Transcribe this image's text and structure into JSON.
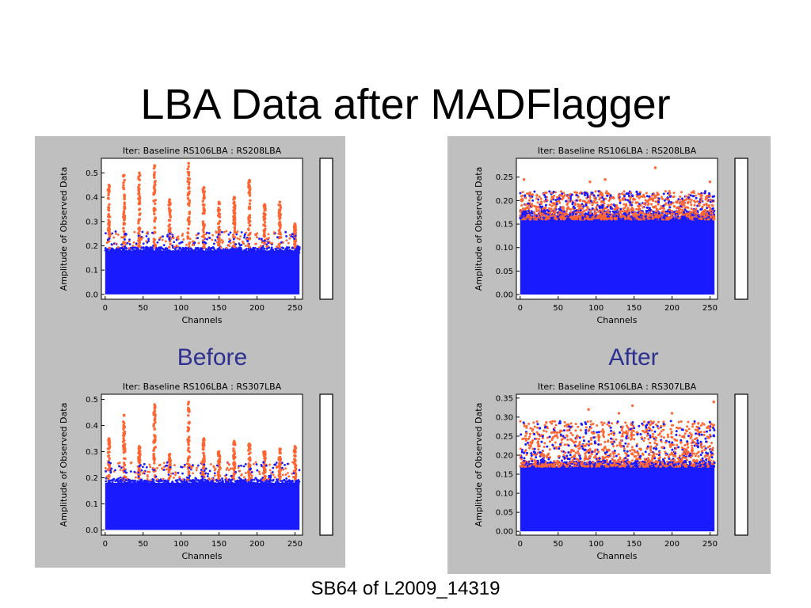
{
  "slide": {
    "title": "LBA Data after MADFlagger",
    "caption_left": "Before",
    "caption_right": "After",
    "footer": "SB64 of L2009_14319"
  },
  "colors": {
    "unflagged": "#1a1aff",
    "flagged": "#ff6633",
    "panel_bg": "#bfbfbf"
  },
  "chart_data": [
    {
      "type": "scatter",
      "title": "Iter: Baseline RS106LBA : RS208LBA",
      "xlabel": "Channels",
      "ylabel": "Amplitude of Observed Data",
      "xlim": [
        -5,
        260
      ],
      "ylim": [
        -0.02,
        0.56
      ],
      "xticks": [
        0,
        50,
        100,
        150,
        200,
        250
      ],
      "yticks": [
        0.0,
        0.1,
        0.2,
        0.3,
        0.4,
        0.5
      ],
      "ytick_labels": [
        "0.0",
        "0.1",
        "0.2",
        "0.3",
        "0.4",
        "0.5"
      ],
      "series": [
        {
          "values": {
            "band_max": 0.19,
            "x_range": [
              0,
              256
            ]
          }
        },
        {
          "values": {
            "spike_channels": [
              5,
              25,
              45,
              65,
              85,
              110,
              130,
              150,
              170,
              190,
              210,
              230,
              250
            ],
            "spike_peaks": [
              0.45,
              0.49,
              0.5,
              0.53,
              0.39,
              0.54,
              0.44,
              0.38,
              0.4,
              0.47,
              0.37,
              0.38,
              0.29
            ]
          }
        }
      ]
    },
    {
      "type": "scatter",
      "title": "Iter: Baseline RS106LBA : RS208LBA",
      "xlabel": "Channels",
      "ylabel": "Amplitude of Observed Data",
      "xlim": [
        -5,
        260
      ],
      "ylim": [
        -0.01,
        0.29
      ],
      "xticks": [
        0,
        50,
        100,
        150,
        200,
        250
      ],
      "yticks": [
        0.0,
        0.05,
        0.1,
        0.15,
        0.2,
        0.25
      ],
      "ytick_labels": [
        "0.00",
        "0.05",
        "0.10",
        "0.15",
        "0.20",
        "0.25"
      ],
      "series": [
        {
          "values": {
            "band_max": 0.175,
            "x_range": [
              0,
              256
            ]
          }
        },
        {
          "values": {
            "band_min": 0.16,
            "band_max": 0.22,
            "x_range": [
              0,
              256
            ],
            "outliers": [
              [
                178,
                0.27
              ],
              [
                112,
                0.245
              ],
              [
                92,
                0.24
              ],
              [
                5,
                0.245
              ],
              [
                250,
                0.24
              ]
            ]
          }
        }
      ]
    },
    {
      "type": "scatter",
      "title": "Iter: Baseline RS106LBA : RS307LBA",
      "xlabel": "Channels",
      "ylabel": "Amplitude of Observed Data",
      "xlim": [
        -5,
        260
      ],
      "ylim": [
        -0.02,
        0.52
      ],
      "xticks": [
        0,
        50,
        100,
        150,
        200,
        250
      ],
      "yticks": [
        0.0,
        0.1,
        0.2,
        0.3,
        0.4,
        0.5
      ],
      "ytick_labels": [
        "0.0",
        "0.1",
        "0.2",
        "0.3",
        "0.4",
        "0.5"
      ],
      "series": [
        {
          "values": {
            "band_max": 0.19,
            "x_range": [
              0,
              256
            ]
          }
        },
        {
          "values": {
            "spike_channels": [
              5,
              25,
              45,
              65,
              85,
              110,
              130,
              150,
              170,
              190,
              210,
              230,
              250
            ],
            "spike_peaks": [
              0.35,
              0.44,
              0.32,
              0.48,
              0.29,
              0.49,
              0.35,
              0.3,
              0.34,
              0.33,
              0.3,
              0.31,
              0.32
            ]
          }
        }
      ]
    },
    {
      "type": "scatter",
      "title": "Iter: Baseline RS106LBA : RS307LBA",
      "xlabel": "Channels",
      "ylabel": "Amplitude of Observed Data",
      "xlim": [
        -5,
        260
      ],
      "ylim": [
        -0.01,
        0.36
      ],
      "xticks": [
        0,
        50,
        100,
        150,
        200,
        250
      ],
      "yticks": [
        0.0,
        0.05,
        0.1,
        0.15,
        0.2,
        0.25,
        0.3,
        0.35
      ],
      "ytick_labels": [
        "0.00",
        "0.05",
        "0.10",
        "0.15",
        "0.20",
        "0.25",
        "0.30",
        "0.35"
      ],
      "series": [
        {
          "values": {
            "band_max": 0.18,
            "x_range": [
              0,
              256
            ]
          }
        },
        {
          "values": {
            "band_min": 0.17,
            "band_max": 0.29,
            "x_range": [
              0,
              256
            ],
            "outliers": [
              [
                255,
                0.34
              ],
              [
                148,
                0.33
              ],
              [
                90,
                0.32
              ],
              [
                200,
                0.31
              ],
              [
                130,
                0.31
              ]
            ]
          }
        }
      ]
    }
  ]
}
